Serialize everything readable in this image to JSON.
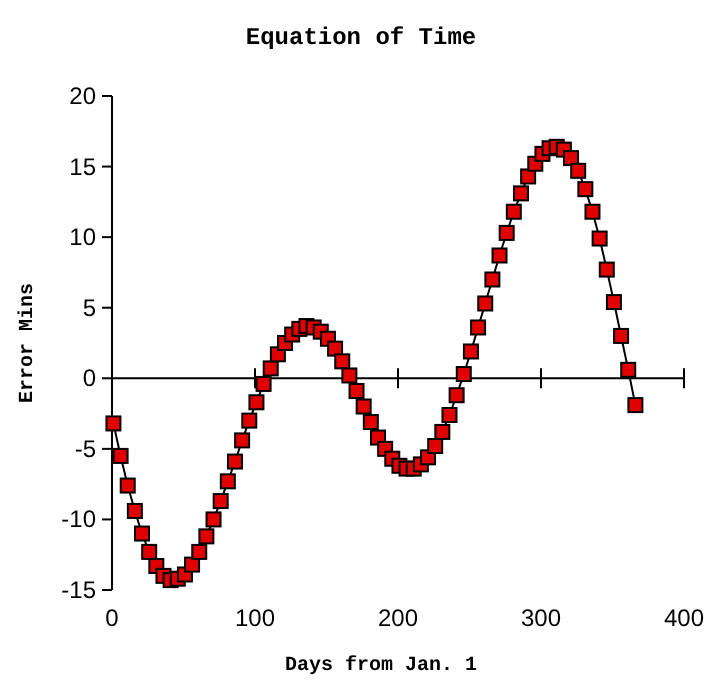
{
  "chart_data": {
    "type": "line",
    "title": "Equation of Time",
    "xlabel": "Days from Jan. 1",
    "ylabel": "Error Mins",
    "xlim": [
      0,
      400
    ],
    "xticks": [
      0,
      100,
      200,
      300,
      400
    ],
    "ylim": [
      -15,
      20
    ],
    "yticks": [
      -15,
      -10,
      -5,
      0,
      5,
      10,
      15,
      20
    ],
    "marker": "square",
    "line_style": "solid",
    "x": [
      1,
      6,
      11,
      16,
      21,
      26,
      31,
      36,
      41,
      46,
      51,
      56,
      61,
      66,
      71,
      76,
      81,
      86,
      91,
      96,
      101,
      106,
      111,
      116,
      121,
      126,
      131,
      136,
      141,
      146,
      151,
      156,
      161,
      166,
      171,
      176,
      181,
      186,
      191,
      196,
      201,
      206,
      211,
      216,
      221,
      226,
      231,
      236,
      241,
      246,
      251,
      256,
      261,
      266,
      271,
      276,
      281,
      286,
      291,
      296,
      301,
      306,
      311,
      316,
      321,
      326,
      331,
      336,
      341,
      346,
      351,
      356,
      361,
      366
    ],
    "series": [
      {
        "color": "#e00000",
        "values": [
          -3.2,
          -5.5,
          -7.6,
          -9.4,
          -11.0,
          -12.3,
          -13.3,
          -14.0,
          -14.3,
          -14.2,
          -13.9,
          -13.2,
          -12.3,
          -11.2,
          -10.0,
          -8.7,
          -7.3,
          -5.9,
          -4.4,
          -3.0,
          -1.7,
          -0.4,
          0.7,
          1.7,
          2.5,
          3.1,
          3.5,
          3.7,
          3.6,
          3.3,
          2.8,
          2.1,
          1.2,
          0.2,
          -0.9,
          -2.0,
          -3.1,
          -4.2,
          -5.0,
          -5.7,
          -6.2,
          -6.4,
          -6.4,
          -6.1,
          -5.6,
          -4.8,
          -3.8,
          -2.6,
          -1.2,
          0.3,
          1.9,
          3.6,
          5.3,
          7.0,
          8.7,
          10.3,
          11.8,
          13.1,
          14.3,
          15.2,
          15.9,
          16.3,
          16.4,
          16.2,
          15.6,
          14.7,
          13.4,
          11.8,
          9.9,
          7.7,
          5.4,
          3.0,
          0.6,
          -1.9
        ]
      }
    ]
  }
}
